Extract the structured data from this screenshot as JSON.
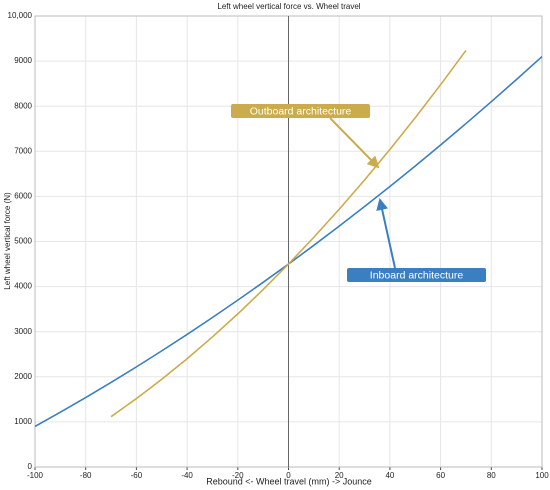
{
  "chart_data": {
    "type": "line",
    "title": "Left wheel vertical force vs. Wheel travel",
    "x_label": "Rebound <- Wheel travel (mm) -> Jounce",
    "y_label": "Left wheel vertical force (N)",
    "xlim": [
      -100,
      100
    ],
    "xticks": [
      -100,
      -80,
      -60,
      -40,
      -20,
      0,
      20,
      40,
      60,
      80,
      100
    ],
    "ylim": [
      0,
      10000
    ],
    "yticks": [
      0,
      1000,
      2000,
      3000,
      4000,
      5000,
      6000,
      7000,
      8000,
      9000,
      {
        "value": 10000,
        "label": "10,000"
      }
    ],
    "grid": true,
    "series": [
      {
        "name": "Inboard architecture",
        "color": "#3a7fc1",
        "x": [
          -100,
          -90,
          -80,
          -70,
          -60,
          -50,
          -40,
          -30,
          -20,
          -10,
          0,
          10,
          20,
          30,
          40,
          50,
          60,
          70,
          80,
          90,
          100
        ],
        "values": [
          900,
          1215,
          1540,
          1875,
          2220,
          2575,
          2940,
          3315,
          3700,
          4095,
          4500,
          4915,
          5340,
          5775,
          6220,
          6675,
          7140,
          7615,
          8100,
          8595,
          9100
        ]
      },
      {
        "name": "Outboard architecture",
        "color": "#cbab4c",
        "x": [
          -70,
          -60,
          -50,
          -40,
          -30,
          -20,
          -10,
          0,
          10,
          20,
          30,
          40,
          50,
          60,
          70
        ],
        "values": [
          1116,
          1517,
          1945,
          2401,
          2884,
          3395,
          3934,
          4500,
          5094,
          5715,
          6364,
          7041,
          7745,
          8477,
          9236
        ]
      }
    ]
  }
}
